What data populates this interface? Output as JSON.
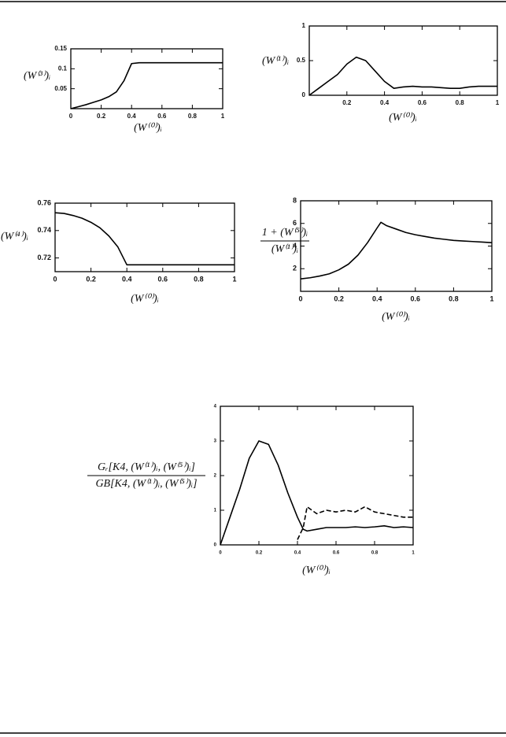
{
  "chart_data": [
    {
      "type": "line",
      "ylabel": "(W⁽³⁾)ᵢ",
      "xlabel": "(W⁽⁰⁾)ᵢ",
      "x": [
        0,
        0.05,
        0.1,
        0.15,
        0.2,
        0.25,
        0.3,
        0.35,
        0.4,
        0.45,
        0.5,
        0.55,
        0.6,
        0.65,
        0.7,
        0.75,
        0.8,
        0.85,
        0.9,
        0.95,
        1
      ],
      "series": [
        {
          "color": "#000",
          "values": [
            0,
            0.005,
            0.01,
            0.016,
            0.022,
            0.03,
            0.042,
            0.07,
            0.113,
            0.115,
            0.115,
            0.115,
            0.115,
            0.115,
            0.115,
            0.115,
            0.115,
            0.115,
            0.115,
            0.115,
            0.115
          ]
        }
      ],
      "xlim": [
        0,
        1
      ],
      "ylim": [
        0,
        0.15
      ],
      "xticks": [
        0,
        0.2,
        0.4,
        0.6,
        0.8,
        1
      ],
      "yticks": [
        0.05,
        0.1,
        0.15
      ]
    },
    {
      "type": "line",
      "ylabel": "(W⁽¹⁾)ᵢ",
      "xlabel": "(W⁽⁰⁾)ᵢ",
      "x": [
        0,
        0.05,
        0.1,
        0.15,
        0.2,
        0.25,
        0.3,
        0.35,
        0.4,
        0.45,
        0.5,
        0.55,
        0.6,
        0.65,
        0.7,
        0.75,
        0.8,
        0.85,
        0.9,
        0.95,
        1
      ],
      "series": [
        {
          "color": "#000",
          "values": [
            0,
            0.1,
            0.2,
            0.3,
            0.45,
            0.55,
            0.5,
            0.35,
            0.2,
            0.1,
            0.12,
            0.13,
            0.12,
            0.12,
            0.11,
            0.1,
            0.1,
            0.12,
            0.13,
            0.13,
            0.13
          ]
        }
      ],
      "xlim": [
        0,
        1
      ],
      "ylim": [
        0,
        1
      ],
      "xticks": [
        0.2,
        0.4,
        0.6,
        0.8,
        1
      ],
      "yticks": [
        0,
        0.5,
        1
      ]
    },
    {
      "type": "line",
      "ylabel": "(W⁽⁴⁾)ᵢ",
      "xlabel": "(W⁽⁰⁾)ᵢ",
      "x": [
        0,
        0.05,
        0.1,
        0.15,
        0.2,
        0.25,
        0.3,
        0.35,
        0.4,
        0.45,
        0.5,
        0.55,
        0.6,
        0.65,
        0.7,
        0.75,
        0.8,
        0.85,
        0.9,
        0.95,
        1
      ],
      "series": [
        {
          "color": "#000",
          "values": [
            0.753,
            0.7525,
            0.751,
            0.749,
            0.746,
            0.742,
            0.736,
            0.728,
            0.715,
            0.715,
            0.715,
            0.715,
            0.715,
            0.715,
            0.715,
            0.715,
            0.715,
            0.715,
            0.715,
            0.715,
            0.715
          ]
        }
      ],
      "xlim": [
        0,
        1
      ],
      "ylim": [
        0.71,
        0.76
      ],
      "xticks": [
        0,
        0.2,
        0.4,
        0.6,
        0.8,
        1
      ],
      "yticks": [
        0.72,
        0.74,
        0.76
      ]
    },
    {
      "type": "line",
      "ylabel": [
        "1 + (W⁽⁵⁾)ᵢ",
        "(W⁽¹⁾)ᵢ"
      ],
      "xlabel": "(W⁽⁰⁾)ᵢ",
      "x": [
        0,
        0.05,
        0.1,
        0.15,
        0.2,
        0.25,
        0.3,
        0.35,
        0.4,
        0.42,
        0.45,
        0.5,
        0.55,
        0.6,
        0.65,
        0.7,
        0.75,
        0.8,
        0.85,
        0.9,
        0.95,
        1
      ],
      "series": [
        {
          "color": "#000",
          "values": [
            1.1,
            1.2,
            1.35,
            1.55,
            1.9,
            2.4,
            3.2,
            4.3,
            5.6,
            6.1,
            5.8,
            5.5,
            5.2,
            5,
            4.85,
            4.7,
            4.6,
            4.5,
            4.45,
            4.4,
            4.35,
            4.3
          ]
        }
      ],
      "xlim": [
        0,
        1
      ],
      "ylim": [
        0,
        8
      ],
      "xticks": [
        0,
        0.2,
        0.4,
        0.6,
        0.8,
        1
      ],
      "yticks": [
        2,
        4,
        6,
        8
      ]
    },
    {
      "type": "line",
      "ylabel": [
        "Gᵣ[K4, (W⁽¹⁾)ᵢ, (W⁽⁵⁾)ᵢ]",
        "GB[K4, (W⁽¹⁾)ᵢ, (W⁽⁵⁾)ᵢ]"
      ],
      "xlabel": "(W⁽⁰⁾)ᵢ",
      "x": [
        0,
        0.05,
        0.1,
        0.15,
        0.2,
        0.25,
        0.3,
        0.35,
        0.4,
        0.43,
        0.45,
        0.5,
        0.55,
        0.6,
        0.65,
        0.7,
        0.75,
        0.8,
        0.85,
        0.9,
        0.95,
        1
      ],
      "series": [
        {
          "color": "#000",
          "values": [
            0,
            0.8,
            1.6,
            2.5,
            3,
            2.9,
            2.3,
            1.5,
            0.8,
            0.45,
            0.4,
            0.45,
            0.5,
            0.5,
            0.5,
            0.52,
            0.5,
            0.52,
            0.55,
            0.5,
            0.52,
            0.5
          ]
        },
        {
          "color": "#000",
          "dashed": true,
          "values": [
            null,
            null,
            null,
            null,
            null,
            null,
            null,
            null,
            0.15,
            0.5,
            1.1,
            0.9,
            1,
            0.95,
            1,
            0.95,
            1.1,
            0.95,
            0.9,
            0.85,
            0.8,
            0.8
          ]
        }
      ],
      "xlim": [
        0,
        1
      ],
      "ylim": [
        0,
        4
      ],
      "xticks": [
        0,
        0.2,
        0.4,
        0.6,
        0.8,
        1
      ],
      "yticks": [
        0,
        1,
        2,
        3,
        4
      ]
    }
  ]
}
